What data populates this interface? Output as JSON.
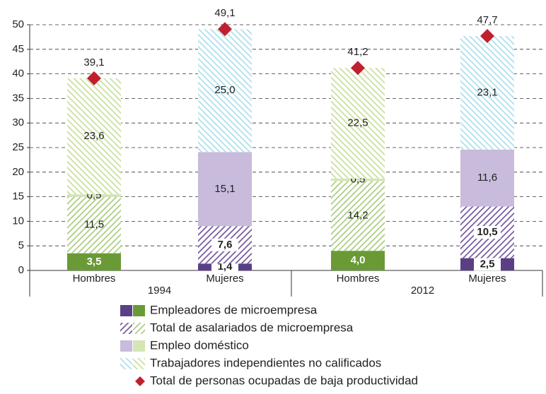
{
  "chart_data": {
    "type": "stacked-bar",
    "categories": [
      "Hombres",
      "Mujeres",
      "Hombres",
      "Mujeres"
    ],
    "groups": [
      {
        "label": "1994",
        "span": 2
      },
      {
        "label": "2012",
        "span": 2
      }
    ],
    "ylim": [
      0,
      50
    ],
    "yticks": [
      0,
      5,
      10,
      15,
      20,
      25,
      30,
      35,
      40,
      45,
      50
    ],
    "grid": true,
    "series": [
      {
        "name": "Empleadores de microempresa",
        "pattern": "solid",
        "colors": [
          "#6a9a35",
          "#5b3f86",
          "#6a9a35",
          "#5b3f86"
        ],
        "values": [
          3.5,
          1.4,
          4.0,
          2.5
        ],
        "value_labels": [
          "3,5",
          "1,4",
          "4,0",
          "2,5"
        ]
      },
      {
        "name": "Total de asalariados de microempresa",
        "pattern": "hatch-right",
        "colors": [
          "#a4c878",
          "#6a4c94",
          "#a4c878",
          "#6a4c94"
        ],
        "values": [
          11.5,
          7.6,
          14.2,
          10.5
        ],
        "value_labels": [
          "11,5",
          "7,6",
          "14,2",
          "10,5"
        ]
      },
      {
        "name": "Empleo doméstico",
        "pattern": "solid",
        "colors": [
          "#d3e6b4",
          "#c8bbdc",
          "#d3e6b4",
          "#c8bbdc"
        ],
        "values": [
          0.5,
          15.1,
          0.5,
          11.6
        ],
        "value_labels": [
          "0,5",
          "15,1",
          "0,5",
          "11,6"
        ]
      },
      {
        "name": "Trabajadores independientes no calificados",
        "pattern": "hatch-left",
        "colors": [
          "#c4dc98",
          "#a6dce8",
          "#c4dc98",
          "#a6dce8"
        ],
        "values": [
          23.6,
          25.0,
          22.5,
          23.1
        ],
        "value_labels": [
          "23,6",
          "25,0",
          "22,5",
          "23,1"
        ]
      }
    ],
    "totals": {
      "name": "Total de personas ocupadas de baja productividad",
      "color": "#c0202e",
      "values": [
        39.1,
        49.1,
        41.2,
        47.7
      ],
      "value_labels": [
        "39,1",
        "49,1",
        "41,2",
        "47,7"
      ]
    }
  }
}
